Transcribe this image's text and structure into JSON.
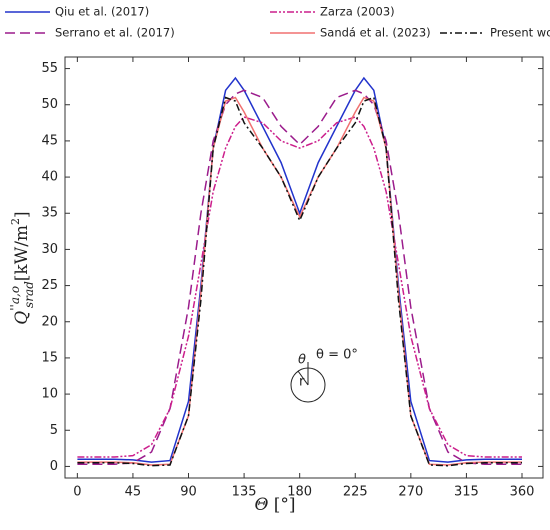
{
  "chart_data": {
    "type": "line",
    "x_label": {
      "symbol": "Θ",
      "unit": "[°]"
    },
    "y_label": {
      "symbol": "Q",
      "sup": "''a,o",
      "sub": "srad",
      "unit": "[kW/m",
      "unit_sup": "2",
      "unit_close": "]"
    },
    "inset": {
      "theta": "θ",
      "zero": "θ = 0°",
      "r": "r"
    },
    "x": [
      0,
      15,
      30,
      45,
      60,
      75,
      90,
      100,
      110,
      120,
      128,
      135,
      150,
      165,
      180,
      195,
      210,
      225,
      232,
      240,
      250,
      260,
      270,
      285,
      300,
      315,
      330,
      345,
      360
    ],
    "series": [
      {
        "name": "Qiu et al. (2017)",
        "color": "#2233cc",
        "dash": "solid",
        "values": [
          1.0,
          1.0,
          1.0,
          0.9,
          0.6,
          0.8,
          9,
          25,
          44,
          52,
          53.7,
          52,
          47,
          42,
          35,
          42,
          47,
          52,
          53.7,
          52,
          44,
          25,
          9,
          0.8,
          0.6,
          0.9,
          1.0,
          1.0,
          1.0
        ]
      },
      {
        "name": "Serrano et al. (2017)",
        "color": "#9b1c8c",
        "dash": "dash",
        "values": [
          0.3,
          0.3,
          0.3,
          0.5,
          2,
          8,
          22,
          35,
          45,
          50,
          51.5,
          52,
          51,
          47,
          44.5,
          47,
          51,
          52,
          51.5,
          50,
          45,
          35,
          22,
          8,
          2,
          0.5,
          0.3,
          0.3,
          0.3
        ]
      },
      {
        "name": "Zarza (2003)",
        "color": "#cc1e8c",
        "dash": "dashdotdot",
        "values": [
          1.3,
          1.3,
          1.3,
          1.5,
          3,
          8,
          18,
          28,
          38,
          44,
          47,
          48.3,
          47.5,
          45,
          44,
          45,
          47.5,
          48.3,
          47,
          44,
          38,
          28,
          18,
          8,
          3,
          1.5,
          1.3,
          1.3,
          1.3
        ]
      },
      {
        "name": "Sandá et al. (2023)",
        "color": "#f07070",
        "dash": "solid",
        "values": [
          0.6,
          0.6,
          0.6,
          0.5,
          0.2,
          0.3,
          7,
          24,
          44,
          50.5,
          51,
          49,
          44,
          40,
          34.5,
          40,
          44,
          49,
          51,
          50.5,
          44,
          24,
          7,
          0.3,
          0.2,
          0.5,
          0.6,
          0.6,
          0.6
        ]
      },
      {
        "name": "Present work",
        "color": "#111111",
        "dash": "dashdot",
        "values": [
          0.5,
          0.5,
          0.5,
          0.4,
          0.1,
          0.2,
          7,
          23,
          44,
          51,
          50.5,
          47.5,
          44,
          40,
          34,
          40,
          44,
          47.5,
          50.5,
          51,
          44,
          23,
          7,
          0.2,
          0.1,
          0.4,
          0.5,
          0.5,
          0.5
        ]
      }
    ],
    "xlim": [
      -10,
      377
    ],
    "ylim": [
      -1.6,
      56.6
    ],
    "xticks": [
      0,
      45,
      90,
      135,
      180,
      225,
      270,
      315,
      360
    ],
    "yticks": [
      0,
      5,
      10,
      15,
      20,
      25,
      30,
      35,
      40,
      45,
      50,
      55
    ]
  }
}
